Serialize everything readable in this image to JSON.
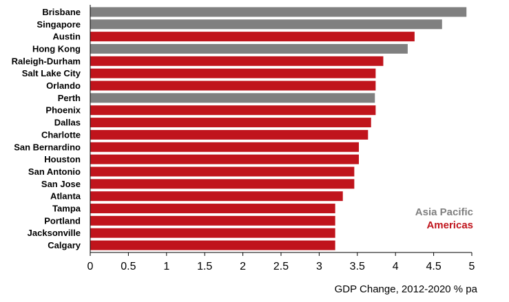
{
  "chart_data": {
    "type": "bar",
    "orientation": "horizontal",
    "categories": [
      "Brisbane",
      "Singapore",
      "Austin",
      "Hong Kong",
      "Raleigh-Durham",
      "Salt Lake City",
      "Orlando",
      "Perth",
      "Phoenix",
      "Dallas",
      "Charlotte",
      "San Bernardino",
      "Houston",
      "San Antonio",
      "San Jose",
      "Atlanta",
      "Tampa",
      "Portland",
      "Jacksonville",
      "Calgary"
    ],
    "values": [
      4.93,
      4.61,
      4.25,
      4.16,
      3.84,
      3.74,
      3.74,
      3.73,
      3.74,
      3.68,
      3.64,
      3.52,
      3.52,
      3.46,
      3.46,
      3.31,
      3.21,
      3.21,
      3.21,
      3.21
    ],
    "groups": [
      "Asia Pacific",
      "Asia Pacific",
      "Americas",
      "Asia Pacific",
      "Americas",
      "Americas",
      "Americas",
      "Asia Pacific",
      "Americas",
      "Americas",
      "Americas",
      "Americas",
      "Americas",
      "Americas",
      "Americas",
      "Americas",
      "Americas",
      "Americas",
      "Americas",
      "Americas"
    ],
    "xlabel": "GDP Change, 2012-2020 % pa",
    "xlim": [
      0,
      5
    ],
    "xticks": [
      "0",
      "0.5",
      "1",
      "1.5",
      "2",
      "2.5",
      "3",
      "3.5",
      "4",
      "4.5",
      "5"
    ],
    "grid": false,
    "legend": {
      "placement": "bottom-right",
      "entries": [
        {
          "name": "Asia Pacific",
          "color": "#808080"
        },
        {
          "name": "Americas",
          "color": "#c0141c"
        }
      ]
    },
    "colors": {
      "Asia Pacific": "#808080",
      "Americas": "#c0141c"
    }
  }
}
